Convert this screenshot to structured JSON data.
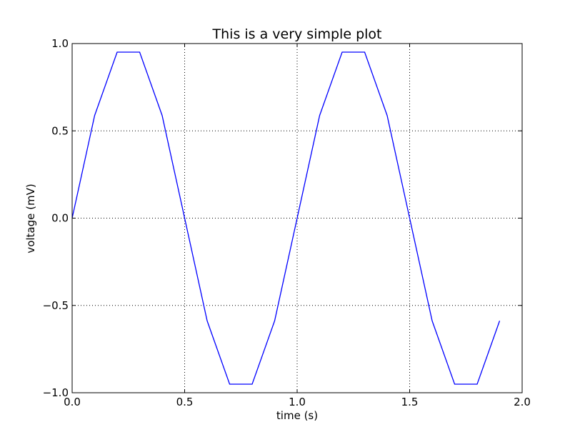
{
  "chart_data": {
    "type": "line",
    "title": "This is a very simple plot",
    "xlabel": "time (s)",
    "ylabel": "voltage (mV)",
    "xlim": [
      0.0,
      2.0
    ],
    "ylim": [
      -1.0,
      1.0
    ],
    "grid": true,
    "xticks": [
      {
        "value": 0.0,
        "label": "0.0"
      },
      {
        "value": 0.5,
        "label": "0.5"
      },
      {
        "value": 1.0,
        "label": "1.0"
      },
      {
        "value": 1.5,
        "label": "1.5"
      },
      {
        "value": 2.0,
        "label": "2.0"
      }
    ],
    "yticks": [
      {
        "value": -1.0,
        "label": "−1.0"
      },
      {
        "value": -0.5,
        "label": "−0.5"
      },
      {
        "value": 0.0,
        "label": "0.0"
      },
      {
        "value": 0.5,
        "label": "0.5"
      },
      {
        "value": 1.0,
        "label": "1.0"
      }
    ],
    "series": [
      {
        "color": "#0000ff",
        "x": [
          0.0,
          0.1,
          0.2,
          0.3,
          0.4,
          0.5,
          0.6,
          0.7,
          0.8,
          0.9,
          1.0,
          1.1,
          1.2,
          1.3,
          1.4,
          1.5,
          1.6,
          1.7,
          1.8,
          1.9
        ],
        "y": [
          0.0,
          0.588,
          0.951,
          0.951,
          0.588,
          0.0,
          -0.588,
          -0.951,
          -0.951,
          -0.588,
          0.0,
          0.588,
          0.951,
          0.951,
          0.588,
          0.0,
          -0.588,
          -0.951,
          -0.951,
          -0.588
        ]
      }
    ]
  }
}
